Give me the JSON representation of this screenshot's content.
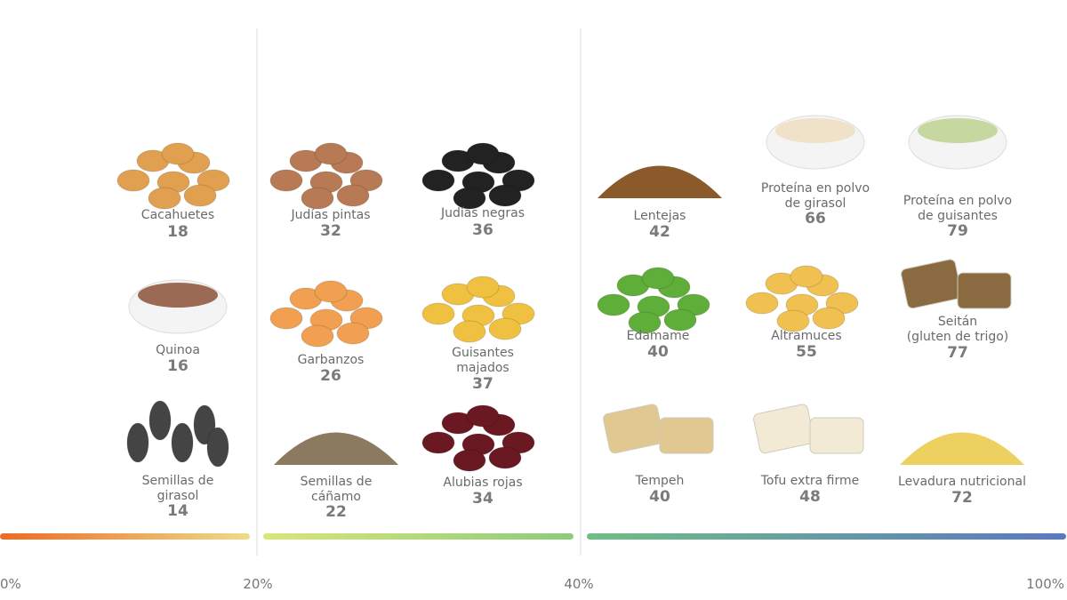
{
  "items": [
    {
      "label": [
        "Cacahuetes"
      ],
      "value": "18"
    },
    {
      "label": [
        "Quinoa"
      ],
      "value": "16"
    },
    {
      "label": [
        "Semillas de",
        "girasol"
      ],
      "value": "14"
    },
    {
      "label": [
        "Judías pintas"
      ],
      "value": "32"
    },
    {
      "label": [
        "Garbanzos"
      ],
      "value": "26"
    },
    {
      "label": [
        "Semillas de",
        "cáñamo"
      ],
      "value": "22"
    },
    {
      "label": [
        "Judías negras"
      ],
      "value": "36"
    },
    {
      "label": [
        "Guisantes",
        "majados"
      ],
      "value": "37"
    },
    {
      "label": [
        "Alubias rojas"
      ],
      "value": "34"
    },
    {
      "label": [
        "Lentejas"
      ],
      "value": "42"
    },
    {
      "label": [
        "Edamame"
      ],
      "value": "40"
    },
    {
      "label": [
        "Tempeh"
      ],
      "value": "40"
    },
    {
      "label": [
        "Proteína en polvo",
        "de girasol"
      ],
      "value": "66"
    },
    {
      "label": [
        "Altramuces"
      ],
      "value": "55"
    },
    {
      "label": [
        "Tofu extra firme"
      ],
      "value": "48"
    },
    {
      "label": [
        "Proteína en polvo",
        "de guisantes"
      ],
      "value": "79"
    },
    {
      "label": [
        "Seitán",
        "(gluten de trigo)"
      ],
      "value": "77"
    },
    {
      "label": [
        "Levadura nutricional"
      ],
      "value": "72"
    }
  ],
  "scale": [
    "0%",
    "20%",
    "40%",
    "100%"
  ]
}
